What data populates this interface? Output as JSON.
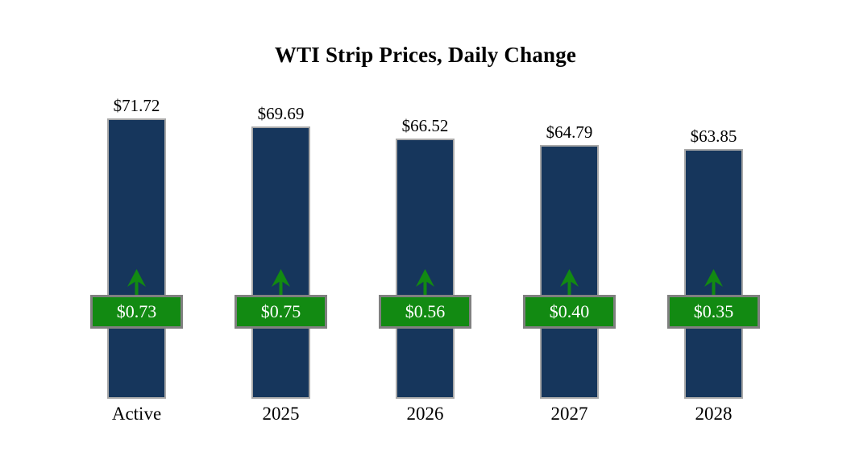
{
  "chart_data": {
    "type": "bar",
    "title": "WTI Strip Prices, Daily Change",
    "categories": [
      "Active",
      "2025",
      "2026",
      "2027",
      "2028"
    ],
    "values": [
      71.72,
      69.69,
      66.52,
      64.79,
      63.85
    ],
    "changes": [
      0.73,
      0.75,
      0.56,
      0.4,
      0.35
    ],
    "xlabel": "",
    "ylabel": "",
    "ylim": [
      0,
      72
    ],
    "grid": false,
    "legend": "none",
    "bars": [
      {
        "category": "Active",
        "value": 71.72,
        "price_label": "$71.72",
        "change": 0.73,
        "change_label": "$0.73",
        "direction": "up"
      },
      {
        "category": "2025",
        "value": 69.69,
        "price_label": "$69.69",
        "change": 0.75,
        "change_label": "$0.75",
        "direction": "up"
      },
      {
        "category": "2026",
        "value": 66.52,
        "price_label": "$66.52",
        "change": 0.56,
        "change_label": "$0.56",
        "direction": "up"
      },
      {
        "category": "2027",
        "value": 64.79,
        "price_label": "$64.79",
        "change": 0.4,
        "change_label": "$0.40",
        "direction": "up"
      },
      {
        "category": "2028",
        "value": 63.85,
        "price_label": "$63.85",
        "change": 0.35,
        "change_label": "$0.35",
        "direction": "up"
      }
    ],
    "colors": {
      "bar": "#16365c",
      "bar_border": "#a9a9a9",
      "change_fill": "#128a12",
      "badge_border": "#808080",
      "badge_text": "#ffffff",
      "arrow": "#128a12",
      "text": "#000000",
      "background": "#ffffff"
    }
  }
}
